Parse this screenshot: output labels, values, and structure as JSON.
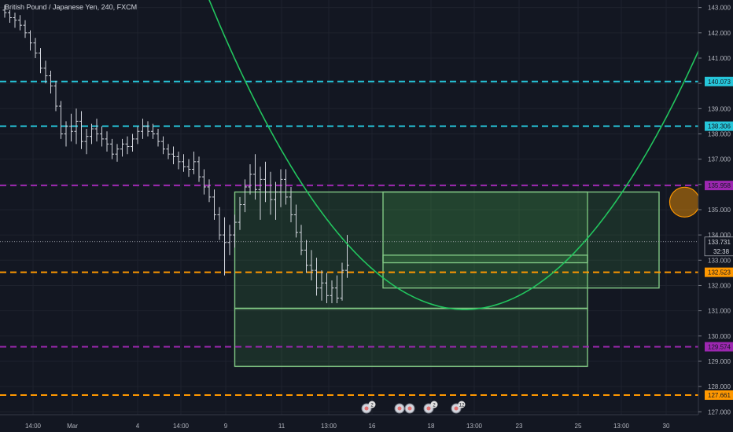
{
  "chart_data": {
    "type": "ohlc",
    "title": "British Pound / Japanese Yen, 240, FXCM",
    "ylim": [
      126.2,
      143.3
    ],
    "y_ticks": [
      127,
      128,
      129,
      130,
      131,
      132,
      133,
      134,
      135,
      136,
      137,
      138,
      139,
      140,
      141,
      142,
      143
    ],
    "y_tick_labels": [
      "127.000",
      "128.000",
      "129.000",
      "130.000",
      "131.000",
      "132.000",
      "133.000",
      "134.000",
      "135.000",
      "136.000",
      "137.000",
      "138.000",
      "139.000",
      "140.000",
      "141.000",
      "142.000",
      "143.000"
    ],
    "x_tick_labels": [
      "14:00",
      "Mar",
      "4",
      "14:00",
      "9",
      "11",
      "13:00",
      "16",
      "18",
      "13:00",
      "23",
      "25",
      "13:00",
      "30"
    ],
    "bars": [
      [
        142.9,
        143.1,
        142.6,
        142.8
      ],
      [
        142.8,
        142.9,
        142.4,
        142.6
      ],
      [
        142.6,
        142.8,
        142.2,
        142.5
      ],
      [
        142.5,
        142.7,
        142.1,
        142.3
      ],
      [
        142.3,
        142.5,
        141.8,
        142.0
      ],
      [
        142.0,
        142.1,
        141.3,
        141.6
      ],
      [
        141.6,
        141.8,
        141.0,
        141.2
      ],
      [
        141.2,
        141.4,
        140.4,
        140.6
      ],
      [
        140.6,
        140.9,
        140.0,
        140.3
      ],
      [
        140.3,
        140.5,
        139.6,
        139.9
      ],
      [
        139.9,
        140.1,
        138.9,
        139.1
      ],
      [
        139.1,
        139.3,
        137.8,
        138.0
      ],
      [
        138.0,
        138.5,
        137.5,
        138.3
      ],
      [
        138.3,
        138.8,
        137.7,
        138.1
      ],
      [
        138.1,
        139.0,
        137.6,
        138.5
      ],
      [
        138.5,
        138.9,
        137.4,
        137.7
      ],
      [
        137.7,
        138.2,
        137.2,
        137.9
      ],
      [
        137.9,
        138.4,
        137.6,
        138.2
      ],
      [
        138.2,
        138.6,
        137.7,
        138.0
      ],
      [
        138.0,
        138.3,
        137.5,
        137.8
      ],
      [
        137.8,
        138.1,
        137.3,
        137.6
      ],
      [
        137.6,
        137.8,
        137.0,
        137.2
      ],
      [
        137.2,
        137.6,
        136.9,
        137.4
      ],
      [
        137.4,
        137.8,
        137.1,
        137.6
      ],
      [
        137.6,
        137.9,
        137.2,
        137.5
      ],
      [
        137.5,
        138.0,
        137.3,
        137.8
      ],
      [
        137.8,
        138.3,
        137.6,
        138.1
      ],
      [
        138.1,
        138.6,
        137.8,
        138.3
      ],
      [
        138.3,
        138.5,
        137.9,
        138.1
      ],
      [
        138.1,
        138.4,
        137.8,
        138.0
      ],
      [
        138.0,
        138.2,
        137.5,
        137.7
      ],
      [
        137.7,
        137.9,
        137.2,
        137.4
      ],
      [
        137.4,
        137.6,
        137.0,
        137.2
      ],
      [
        137.2,
        137.5,
        136.8,
        137.1
      ],
      [
        137.1,
        137.3,
        136.6,
        136.9
      ],
      [
        136.9,
        137.2,
        136.5,
        136.7
      ],
      [
        136.7,
        137.0,
        136.3,
        136.6
      ],
      [
        136.6,
        137.3,
        136.4,
        136.9
      ],
      [
        136.9,
        137.1,
        136.1,
        136.3
      ],
      [
        136.3,
        136.6,
        135.6,
        135.9
      ],
      [
        135.9,
        136.2,
        135.3,
        135.5
      ],
      [
        135.5,
        135.8,
        134.6,
        134.8
      ],
      [
        134.8,
        135.1,
        133.8,
        134.0
      ],
      [
        134.0,
        134.7,
        132.4,
        133.7
      ],
      [
        133.7,
        134.4,
        133.2,
        134.0
      ],
      [
        134.0,
        134.8,
        133.5,
        134.5
      ],
      [
        134.5,
        135.5,
        134.2,
        135.2
      ],
      [
        135.2,
        136.2,
        134.9,
        135.9
      ],
      [
        135.9,
        136.8,
        135.6,
        136.4
      ],
      [
        136.4,
        137.2,
        135.4,
        135.8
      ],
      [
        135.8,
        136.7,
        134.6,
        136.2
      ],
      [
        136.2,
        136.9,
        135.3,
        135.7
      ],
      [
        135.7,
        136.5,
        134.8,
        135.4
      ],
      [
        135.4,
        136.1,
        134.6,
        135.7
      ],
      [
        135.7,
        136.6,
        135.1,
        136.2
      ],
      [
        136.2,
        136.6,
        135.2,
        135.5
      ],
      [
        135.5,
        135.9,
        134.5,
        134.8
      ],
      [
        134.8,
        135.2,
        133.9,
        134.1
      ],
      [
        134.1,
        134.4,
        133.2,
        133.4
      ],
      [
        133.4,
        133.8,
        132.5,
        132.8
      ],
      [
        132.8,
        133.4,
        132.2,
        132.6
      ],
      [
        132.6,
        133.1,
        131.6,
        131.9
      ],
      [
        131.9,
        132.6,
        131.4,
        132.1
      ],
      [
        132.1,
        132.5,
        131.3,
        131.6
      ],
      [
        131.6,
        132.2,
        131.3,
        131.9
      ],
      [
        131.9,
        132.4,
        131.3,
        131.5
      ],
      [
        131.5,
        132.9,
        131.4,
        132.6
      ],
      [
        132.6,
        134.0,
        132.3,
        132.8
      ]
    ],
    "horizontal_levels": [
      {
        "price": 140.073,
        "label": "140.073",
        "color": "#26c6da",
        "style": "dashed"
      },
      {
        "price": 138.306,
        "label": "138.306",
        "color": "#26c6da",
        "style": "dashed"
      },
      {
        "price": 135.958,
        "label": "135.958",
        "color": "#9c27b0",
        "style": "dashed"
      },
      {
        "price": 132.523,
        "label": "132.523",
        "color": "#ff9800",
        "style": "dashed"
      },
      {
        "price": 129.574,
        "label": "129.574",
        "color": "#9c27b0",
        "style": "dashed"
      },
      {
        "price": 127.661,
        "label": "127.661",
        "color": "#ff9800",
        "style": "dashed"
      }
    ],
    "current_price": {
      "price": 133.731,
      "label": "133.731",
      "countdown": "32:38"
    },
    "rectangles": [
      {
        "x0": 45,
        "x1": 114,
        "p0": 135.7,
        "p1": 128.8
      },
      {
        "x0": 74,
        "x1": 128,
        "p0": 135.7,
        "p1": 131.9
      },
      {
        "x0": 74,
        "x1": 114,
        "p0": 133.2,
        "p1": 132.9
      },
      {
        "x0": 45,
        "x1": 114,
        "p0": 131.1,
        "p1": 131.1
      }
    ],
    "parabola": {
      "vertex_x": 90,
      "vertex_p": 131.05,
      "a": 0.0049,
      "x_from": 30,
      "x_to": 159
    },
    "circles": [
      {
        "x": 133,
        "p": 135.3
      },
      {
        "x": 144.5,
        "p": 138.0
      },
      {
        "x": 149.5,
        "p": 139.7
      }
    ],
    "colors": {
      "up": "#d1d4dc",
      "down": "#d1d4dc",
      "box_fill": "#4caf50",
      "curve": "#22c55e",
      "circle": "#ff9800"
    },
    "event_markers": [
      "2",
      "",
      "",
      "2",
      "12"
    ]
  }
}
